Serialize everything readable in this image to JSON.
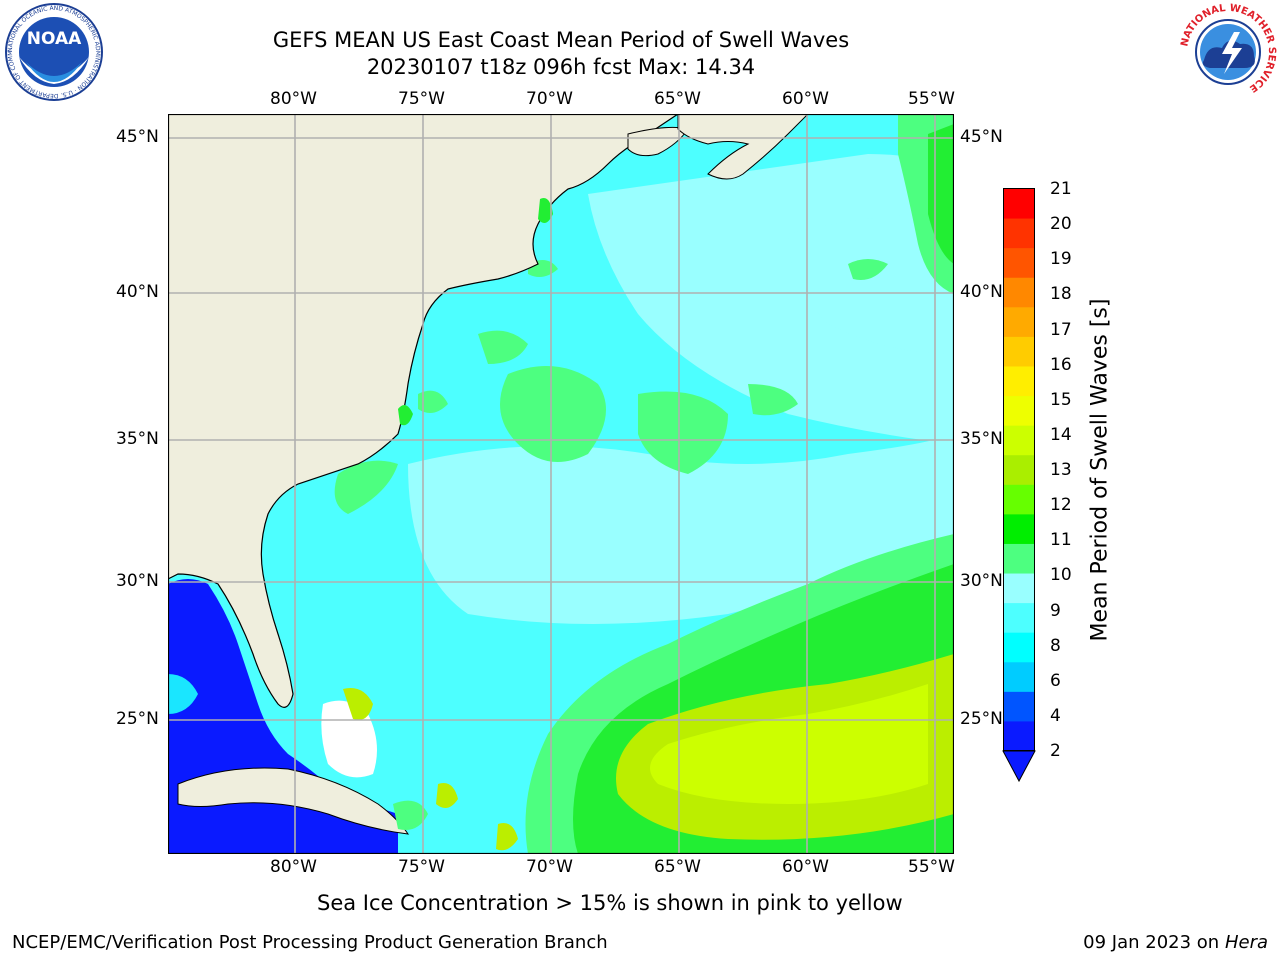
{
  "title": {
    "line1": "GEFS MEAN US East Coast Mean Period of Swell Waves",
    "line2": "20230107 t18z 096h fcst   Max: 14.34"
  },
  "logos": {
    "noaa_text": "NOAA",
    "noaa_ring": "NATIONAL OCEANIC AND ATMOSPHERIC ADMINISTRATION · U.S. DEPARTMENT OF COMMERCE",
    "nws_ring": "NATIONAL WEATHER SERVICE"
  },
  "map": {
    "lon_ticks": [
      "80°W",
      "75°W",
      "70°W",
      "65°W",
      "60°W",
      "55°W"
    ],
    "lat_ticks": [
      "45°N",
      "40°N",
      "35°N",
      "30°N",
      "25°N"
    ],
    "colors": {
      "land": "#efeedd",
      "ocean_light": "#99ffff",
      "ocean_cyan": "#4dffff",
      "ocean_deep": "#1ae6ff",
      "gulf_blue": "#0a1aff",
      "green_light": "#4dff80",
      "green": "#22ee33",
      "yellow_green": "#bbee00",
      "yellow_green_bright": "#ccff00"
    }
  },
  "colorbar": {
    "label": "Mean Period of Swell Waves [s]",
    "levels": [
      "21",
      "20",
      "19",
      "18",
      "17",
      "16",
      "15",
      "14",
      "13",
      "12",
      "11",
      "10",
      "9",
      "8",
      "6",
      "4",
      "2"
    ],
    "colors": [
      "#ff0000",
      "#ff3300",
      "#ff5500",
      "#ff8800",
      "#ffaa00",
      "#ffcc00",
      "#ffee00",
      "#eeff00",
      "#ccff00",
      "#aaee00",
      "#66ff00",
      "#00ee00",
      "#4dff80",
      "#99ffff",
      "#4dffff",
      "#00ffff",
      "#00ccff",
      "#0055ff",
      "#0a1aff"
    ]
  },
  "caption": "Sea Ice Concentration > 15% is shown in pink to yellow",
  "footer": {
    "left": "NCEP/EMC/Verification Post Processing Product Generation Branch",
    "right_date": "09 Jan 2023 on ",
    "right_host": "Hera"
  }
}
